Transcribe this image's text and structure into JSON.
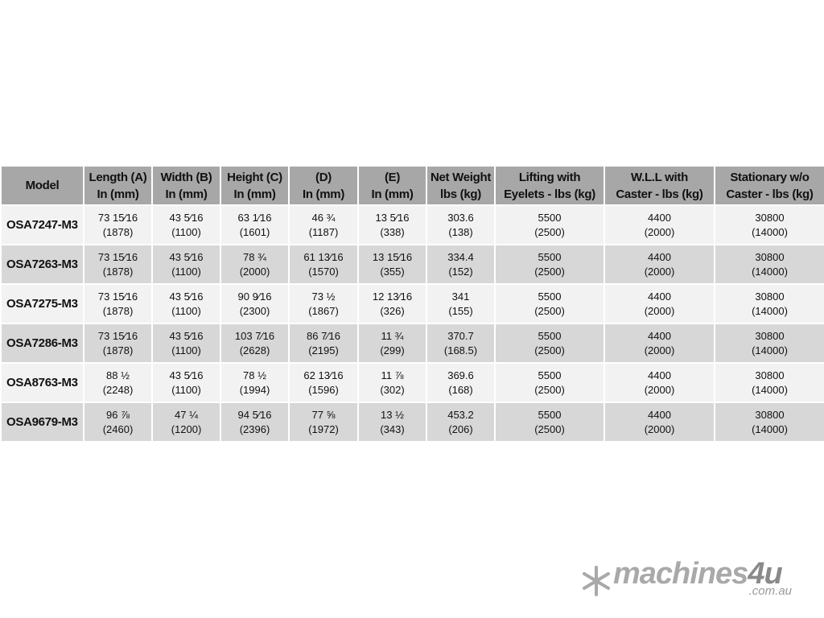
{
  "table": {
    "headers": [
      [
        "Model"
      ],
      [
        "Length (A)",
        "In (mm)"
      ],
      [
        "Width (B)",
        "In (mm)"
      ],
      [
        "Height (C)",
        "In (mm)"
      ],
      [
        "(D)",
        "In (mm)"
      ],
      [
        "(E)",
        "In (mm)"
      ],
      [
        "Net Weight",
        "lbs (kg)"
      ],
      [
        "Lifting with",
        "Eyelets - lbs (kg)"
      ],
      [
        "W.L.L with",
        "Caster - lbs (kg)"
      ],
      [
        "Stationary w/o",
        "Caster - lbs (kg)"
      ]
    ],
    "rows": [
      {
        "model": "OSA7247-M3",
        "cells": [
          [
            "73 15⁄16",
            "(1878)"
          ],
          [
            "43 5⁄16",
            "(1100)"
          ],
          [
            "63 1⁄16",
            "(1601)"
          ],
          [
            "46 ¾",
            "(1187)"
          ],
          [
            "13 5⁄16",
            "(338)"
          ],
          [
            "303.6",
            "(138)"
          ],
          [
            "5500",
            "(2500)"
          ],
          [
            "4400",
            "(2000)"
          ],
          [
            "30800",
            "(14000)"
          ]
        ]
      },
      {
        "model": "OSA7263-M3",
        "cells": [
          [
            "73 15⁄16",
            "(1878)"
          ],
          [
            "43 5⁄16",
            "(1100)"
          ],
          [
            "78 ¾",
            "(2000)"
          ],
          [
            "61 13⁄16",
            "(1570)"
          ],
          [
            "13 15⁄16",
            "(355)"
          ],
          [
            "334.4",
            "(152)"
          ],
          [
            "5500",
            "(2500)"
          ],
          [
            "4400",
            "(2000)"
          ],
          [
            "30800",
            "(14000)"
          ]
        ]
      },
      {
        "model": "OSA7275-M3",
        "cells": [
          [
            "73 15⁄16",
            "(1878)"
          ],
          [
            "43 5⁄16",
            "(1100)"
          ],
          [
            "90 9⁄16",
            "(2300)"
          ],
          [
            "73 ½",
            "(1867)"
          ],
          [
            "12 13⁄16",
            "(326)"
          ],
          [
            "341",
            "(155)"
          ],
          [
            "5500",
            "(2500)"
          ],
          [
            "4400",
            "(2000)"
          ],
          [
            "30800",
            "(14000)"
          ]
        ]
      },
      {
        "model": "OSA7286-M3",
        "cells": [
          [
            "73 15⁄16",
            "(1878)"
          ],
          [
            "43 5⁄16",
            "(1100)"
          ],
          [
            "103 7⁄16",
            "(2628)"
          ],
          [
            "86 7⁄16",
            "(2195)"
          ],
          [
            "11 ¾",
            "(299)"
          ],
          [
            "370.7",
            "(168.5)"
          ],
          [
            "5500",
            "(2500)"
          ],
          [
            "4400",
            "(2000)"
          ],
          [
            "30800",
            "(14000)"
          ]
        ]
      },
      {
        "model": "OSA8763-M3",
        "cells": [
          [
            "88 ½",
            "(2248)"
          ],
          [
            "43 5⁄16",
            "(1100)"
          ],
          [
            "78 ½",
            "(1994)"
          ],
          [
            "62 13⁄16",
            "(1596)"
          ],
          [
            "11 ⅞",
            "(302)"
          ],
          [
            "369.6",
            "(168)"
          ],
          [
            "5500",
            "(2500)"
          ],
          [
            "4400",
            "(2000)"
          ],
          [
            "30800",
            "(14000)"
          ]
        ]
      },
      {
        "model": "OSA9679-M3",
        "cells": [
          [
            "96 ⅞",
            "(2460)"
          ],
          [
            "47 ¼",
            "(1200)"
          ],
          [
            "94 5⁄16",
            "(2396)"
          ],
          [
            "77 ⅝",
            "(1972)"
          ],
          [
            "13 ½",
            "(343)"
          ],
          [
            "453.2",
            "(206)"
          ],
          [
            "5500",
            "(2500)"
          ],
          [
            "4400",
            "(2000)"
          ],
          [
            "30800",
            "(14000)"
          ]
        ]
      }
    ]
  },
  "logo": {
    "word": "machines",
    "four": "4u",
    "domain": ".com.au"
  },
  "colors": {
    "header_bg": "#a7a7a7",
    "row_light": "#f2f2f2",
    "row_dark": "#d7d7d7"
  }
}
